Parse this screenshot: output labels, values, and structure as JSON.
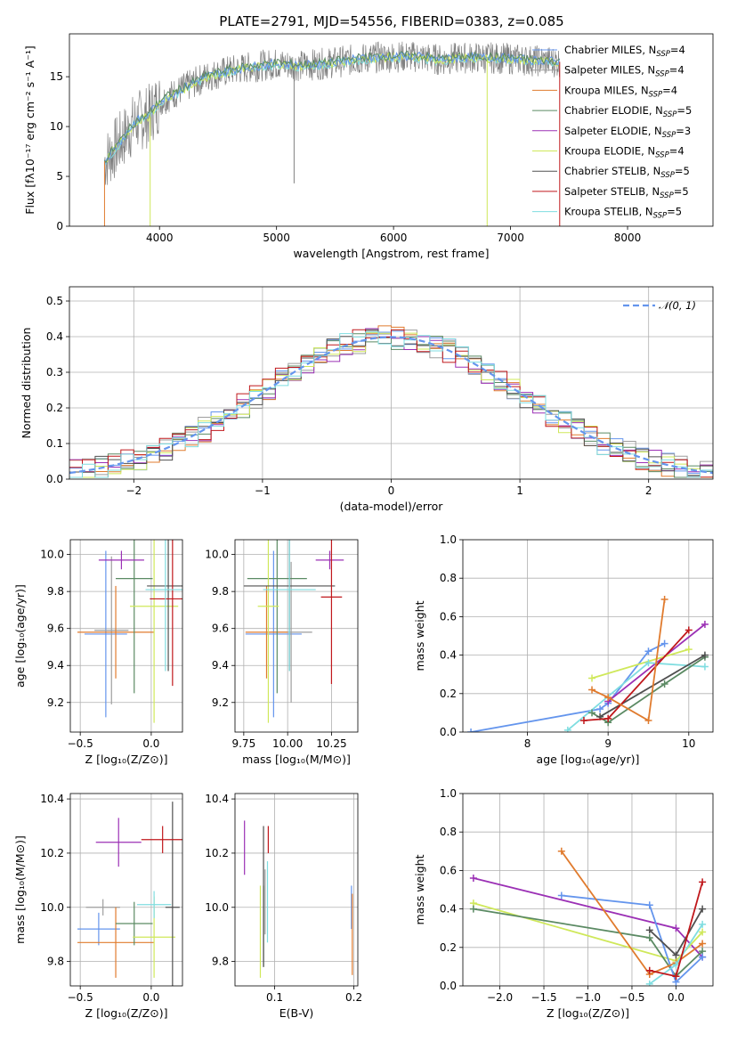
{
  "figure": {
    "title": "PLATE=2791, MJD=54556, FIBERID=0383, z=0.085"
  },
  "series_names": [
    "Chabrier MILES",
    "Salpeter MILES",
    "Kroupa MILES",
    "Chabrier ELODIE",
    "Salpeter ELODIE",
    "Kroupa ELODIE",
    "Chabrier STELIB",
    "Salpeter STELIB",
    "Kroupa STELIB"
  ],
  "series_colors": [
    "#6495ed",
    "#9e9e9e",
    "#e07b2e",
    "#5b8a63",
    "#9b30b5",
    "#cfe85a",
    "#505050",
    "#c0181c",
    "#7fdde0"
  ],
  "chart_data": [
    {
      "type": "line",
      "panel": "spectrum",
      "title": "PLATE=2791, MJD=54556, FIBERID=0383, z=0.085",
      "xlabel": "wavelength [Angstrom, rest frame]",
      "ylabel": "Flux [fλ10⁻¹⁷ erg cm⁻² s⁻¹ A⁻¹]",
      "xlim": [
        3230,
        8730
      ],
      "ylim": [
        0,
        19.3
      ],
      "xticks": [
        "4000",
        "5000",
        "6000",
        "7000",
        "8000"
      ],
      "yticks": [
        "0",
        "5",
        "10",
        "15"
      ],
      "grid": false,
      "legend_position": "right",
      "legend": [
        {
          "name": "Chabrier MILES",
          "n": "4"
        },
        {
          "name": "Salpeter MILES",
          "n": "4"
        },
        {
          "name": "Kroupa MILES",
          "n": "4"
        },
        {
          "name": "Chabrier ELODIE",
          "n": "5"
        },
        {
          "name": "Salpeter ELODIE",
          "n": "3"
        },
        {
          "name": "Kroupa ELODIE",
          "n": "4"
        },
        {
          "name": "Chabrier STELIB",
          "n": "5"
        },
        {
          "name": "Salpeter STELIB",
          "n": "5"
        },
        {
          "name": "Kroupa STELIB",
          "n": "5"
        }
      ],
      "continuum": [
        [
          3530,
          6.5
        ],
        [
          3600,
          7.5
        ],
        [
          3700,
          9.0
        ],
        [
          3800,
          10.5
        ],
        [
          3900,
          11.0
        ],
        [
          4000,
          12.5
        ],
        [
          4200,
          13.8
        ],
        [
          4400,
          15.0
        ],
        [
          4600,
          15.6
        ],
        [
          4800,
          16.0
        ],
        [
          5000,
          16.3
        ],
        [
          5200,
          16.1
        ],
        [
          5400,
          16.3
        ],
        [
          5600,
          16.6
        ],
        [
          5800,
          16.9
        ],
        [
          6000,
          17.0
        ],
        [
          6200,
          17.0
        ],
        [
          6400,
          16.7
        ],
        [
          6600,
          16.9
        ],
        [
          6800,
          16.9
        ],
        [
          7000,
          16.8
        ],
        [
          7200,
          16.6
        ],
        [
          7420,
          16.5
        ]
      ],
      "spikes": [
        {
          "x": 3530,
          "y": 0,
          "color": "#e07b2e"
        },
        {
          "x": 3920,
          "y": 0,
          "color": "#cfe85a"
        },
        {
          "x": 6800,
          "y": 0,
          "color": "#cfe85a"
        },
        {
          "x": 7420,
          "y": 0,
          "color": "#c0181c"
        },
        {
          "x": 5150,
          "y": 4.3,
          "color": "#808080"
        }
      ]
    },
    {
      "type": "line",
      "panel": "residuals",
      "xlabel": "(data-model)/error",
      "ylabel": "Normed distribution",
      "xlim": [
        -2.5,
        2.5
      ],
      "ylim": [
        0,
        0.54
      ],
      "xticks": [
        "−2",
        "−1",
        "0",
        "1",
        "2"
      ],
      "yticks": [
        "0.0",
        "0.1",
        "0.2",
        "0.3",
        "0.4",
        "0.5"
      ],
      "grid": true,
      "legend_position": "top-right",
      "legend": [
        "𝒩(0, 1)"
      ],
      "gaussian": {
        "mean": 0,
        "sigma": 1
      }
    },
    {
      "type": "scatter",
      "panel": "age-vs-Z",
      "xlabel": "Z [log₁₀(Z/Z⊙)]",
      "ylabel": "age  [log₁₀(age/yr)]",
      "xlim": [
        -0.57,
        0.22
      ],
      "ylim": [
        9.04,
        10.08
      ],
      "xticks": [
        "−0.5",
        "0.0"
      ],
      "xtick_values": [
        -0.5,
        0.0
      ],
      "yticks": [
        "9.2",
        "9.4",
        "9.6",
        "9.8",
        "10.0"
      ],
      "ytick_values": [
        9.2,
        9.4,
        9.6,
        9.8,
        10.0
      ],
      "grid": true,
      "points": [
        {
          "s": 0,
          "x": -0.32,
          "xerr": 0.15,
          "y": 9.57,
          "yerr": 0.45
        },
        {
          "s": 1,
          "x": -0.28,
          "xerr": 0.12,
          "y": 9.59,
          "yerr": 0.4
        },
        {
          "s": 2,
          "x": -0.25,
          "xerr": 0.27,
          "y": 9.58,
          "yerr": 0.25
        },
        {
          "s": 3,
          "x": -0.12,
          "xerr": 0.13,
          "y": 9.87,
          "yerr": 0.62
        },
        {
          "s": 4,
          "x": -0.21,
          "xerr": 0.16,
          "y": 9.97,
          "yerr": 0.05
        },
        {
          "s": 5,
          "x": 0.02,
          "xerr": 0.17,
          "y": 9.72,
          "yerr": 0.63
        },
        {
          "s": 6,
          "x": 0.12,
          "xerr": 0.15,
          "y": 9.83,
          "yerr": 0.46
        },
        {
          "s": 7,
          "x": 0.15,
          "xerr": 0.16,
          "y": 9.76,
          "yerr": 0.47
        },
        {
          "s": 8,
          "x": 0.1,
          "xerr": 0.14,
          "y": 9.81,
          "yerr": 0.44
        }
      ]
    },
    {
      "type": "scatter",
      "panel": "age-vs-mass",
      "xlabel": "mass [log₁₀(M/M⊙)]",
      "ylabel": "",
      "xlim": [
        9.7,
        10.4
      ],
      "ylim": [
        9.04,
        10.08
      ],
      "xticks": [
        "9.75",
        "10.00",
        "10.25"
      ],
      "xtick_values": [
        9.75,
        10.0,
        10.25
      ],
      "yticks": [
        "9.2",
        "9.4",
        "9.6",
        "9.8",
        "10.0"
      ],
      "ytick_values": [
        9.2,
        9.4,
        9.6,
        9.8,
        10.0
      ],
      "grid": true,
      "points": [
        {
          "s": 0,
          "x": 9.92,
          "xerr": 0.16,
          "y": 9.57,
          "yerr": 0.45
        },
        {
          "s": 1,
          "x": 10.02,
          "xerr": 0.12,
          "y": 9.58,
          "yerr": 0.38
        },
        {
          "s": 2,
          "x": 9.88,
          "xerr": 0.12,
          "y": 9.58,
          "yerr": 0.25
        },
        {
          "s": 3,
          "x": 9.94,
          "xerr": 0.17,
          "y": 9.87,
          "yerr": 0.62
        },
        {
          "s": 4,
          "x": 10.24,
          "xerr": 0.08,
          "y": 9.97,
          "yerr": 0.05
        },
        {
          "s": 5,
          "x": 9.89,
          "xerr": 0.06,
          "y": 9.72,
          "yerr": 0.63
        },
        {
          "s": 6,
          "x": 10.01,
          "xerr": 0.26,
          "y": 9.83,
          "yerr": 0.46
        },
        {
          "s": 7,
          "x": 10.25,
          "xerr": 0.06,
          "y": 9.77,
          "yerr": 0.47
        },
        {
          "s": 8,
          "x": 10.01,
          "xerr": 0.15,
          "y": 9.81,
          "yerr": 0.44
        }
      ]
    },
    {
      "type": "line",
      "panel": "weight-vs-age",
      "xlabel": "age  [log₁₀(age/yr)]",
      "ylabel": "mass weight",
      "xlim": [
        7.2,
        10.3
      ],
      "ylim": [
        0,
        1.0
      ],
      "xticks": [
        "8",
        "9",
        "10"
      ],
      "xtick_values": [
        8,
        9,
        10
      ],
      "yticks": [
        "0.0",
        "0.2",
        "0.4",
        "0.6",
        "0.8",
        "1.0"
      ],
      "ytick_values": [
        0,
        0.2,
        0.4,
        0.6,
        0.8,
        1.0
      ],
      "grid": true,
      "series": [
        {
          "s": 0,
          "points": [
            [
              7.3,
              0.0
            ],
            [
              8.9,
              0.12
            ],
            [
              9.0,
              0.15
            ],
            [
              9.5,
              0.42
            ],
            [
              9.7,
              0.46
            ]
          ]
        },
        {
          "s": 4,
          "points": [
            [
              9.0,
              0.16
            ],
            [
              10.2,
              0.56
            ]
          ]
        },
        {
          "s": 5,
          "points": [
            [
              8.8,
              0.28
            ],
            [
              10.0,
              0.43
            ]
          ]
        },
        {
          "s": 8,
          "points": [
            [
              8.5,
              0.01
            ],
            [
              9.5,
              0.36
            ],
            [
              10.2,
              0.34
            ]
          ]
        },
        {
          "s": 3,
          "points": [
            [
              8.8,
              0.1
            ],
            [
              9.0,
              0.05
            ],
            [
              9.7,
              0.25
            ],
            [
              10.2,
              0.39
            ]
          ]
        },
        {
          "s": 6,
          "points": [
            [
              8.9,
              0.08
            ],
            [
              10.2,
              0.4
            ]
          ]
        },
        {
          "s": 7,
          "points": [
            [
              8.7,
              0.06
            ],
            [
              9.0,
              0.07
            ],
            [
              10.0,
              0.53
            ]
          ]
        },
        {
          "s": 2,
          "points": [
            [
              8.8,
              0.22
            ],
            [
              9.0,
              0.18
            ],
            [
              9.5,
              0.06
            ],
            [
              9.7,
              0.69
            ]
          ]
        }
      ]
    },
    {
      "type": "scatter",
      "panel": "mass-vs-Z",
      "xlabel": "Z [log₁₀(Z/Z⊙)]",
      "ylabel": "mass [log₁₀(M/M⊙)]",
      "xlim": [
        -0.57,
        0.22
      ],
      "ylim": [
        9.71,
        10.42
      ],
      "xticks": [
        "−0.5",
        "0.0"
      ],
      "xtick_values": [
        -0.5,
        0.0
      ],
      "yticks": [
        "9.8",
        "10.0",
        "10.2",
        "10.4"
      ],
      "ytick_values": [
        9.8,
        10.0,
        10.2,
        10.4
      ],
      "grid": true,
      "points": [
        {
          "s": 0,
          "x": -0.37,
          "xerr": 0.15,
          "y": 9.92,
          "yerr": 0.06
        },
        {
          "s": 1,
          "x": -0.34,
          "xerr": 0.12,
          "y": 10.0,
          "yerr": 0.03
        },
        {
          "s": 2,
          "x": -0.25,
          "xerr": 0.27,
          "y": 9.87,
          "yerr": 0.13
        },
        {
          "s": 3,
          "x": -0.12,
          "xerr": 0.13,
          "y": 9.94,
          "yerr": 0.08
        },
        {
          "s": 4,
          "x": -0.23,
          "xerr": 0.16,
          "y": 10.24,
          "yerr": 0.09
        },
        {
          "s": 5,
          "x": 0.02,
          "xerr": 0.15,
          "y": 9.89,
          "yerr": 0.15
        },
        {
          "s": 6,
          "x": 0.15,
          "xerr": 0.05,
          "y": 10.0,
          "yerr": 0.39
        },
        {
          "s": 7,
          "x": 0.08,
          "xerr": 0.15,
          "y": 10.25,
          "yerr": 0.05
        },
        {
          "s": 8,
          "x": 0.02,
          "xerr": 0.12,
          "y": 10.01,
          "yerr": 0.05
        }
      ]
    },
    {
      "type": "scatter",
      "panel": "mass-vs-ebv",
      "xlabel": "E(B-V)",
      "ylabel": "",
      "xlim": [
        0.05,
        0.205
      ],
      "ylim": [
        9.71,
        10.42
      ],
      "xticks": [
        "0.1",
        "0.2"
      ],
      "xtick_values": [
        0.1,
        0.2
      ],
      "yticks": [
        "9.8",
        "10.0",
        "10.2",
        "10.4"
      ],
      "ytick_values": [
        9.8,
        10.0,
        10.2,
        10.4
      ],
      "grid": true,
      "points": [
        {
          "s": 0,
          "x": 0.197,
          "y": 10.0,
          "yerr": 0.08
        },
        {
          "s": 1,
          "x": 0.088,
          "y": 10.02,
          "yerr": 0.12
        },
        {
          "s": 2,
          "x": 0.198,
          "y": 9.9,
          "yerr": 0.15
        },
        {
          "s": 3,
          "x": 0.086,
          "y": 9.93,
          "yerr": 0.15
        },
        {
          "s": 4,
          "x": 0.062,
          "y": 10.22,
          "yerr": 0.1
        },
        {
          "s": 5,
          "x": 0.082,
          "y": 9.91,
          "yerr": 0.17
        },
        {
          "s": 6,
          "x": 0.086,
          "y": 10.04,
          "yerr": 0.26
        },
        {
          "s": 7,
          "x": 0.092,
          "y": 10.25,
          "yerr": 0.05
        },
        {
          "s": 8,
          "x": 0.091,
          "y": 10.02,
          "yerr": 0.15
        }
      ]
    },
    {
      "type": "line",
      "panel": "weight-vs-Z",
      "xlabel": "Z [log₁₀(Z/Z⊙)]",
      "ylabel": "mass weight",
      "xlim": [
        -2.42,
        0.42
      ],
      "ylim": [
        0,
        1.0
      ],
      "xticks": [
        "−2.0",
        "−1.5",
        "−1.0",
        "−0.5",
        "0.0"
      ],
      "xtick_values": [
        -2.0,
        -1.5,
        -1.0,
        -0.5,
        0.0
      ],
      "yticks": [
        "0.0",
        "0.2",
        "0.4",
        "0.6",
        "0.8",
        "1.0"
      ],
      "ytick_values": [
        0,
        0.2,
        0.4,
        0.6,
        0.8,
        1.0
      ],
      "grid": true,
      "series": [
        {
          "s": 4,
          "points": [
            [
              -2.3,
              0.56
            ],
            [
              0.0,
              0.3
            ],
            [
              0.3,
              0.15
            ]
          ]
        },
        {
          "s": 5,
          "points": [
            [
              -2.3,
              0.43
            ],
            [
              0.0,
              0.13
            ],
            [
              0.3,
              0.28
            ]
          ]
        },
        {
          "s": 3,
          "points": [
            [
              -2.3,
              0.4
            ],
            [
              -0.3,
              0.25
            ],
            [
              0.0,
              0.05
            ],
            [
              0.3,
              0.18
            ]
          ]
        },
        {
          "s": 0,
          "points": [
            [
              -1.3,
              0.47
            ],
            [
              -0.3,
              0.42
            ],
            [
              0.0,
              0.02
            ],
            [
              0.3,
              0.15
            ]
          ]
        },
        {
          "s": 2,
          "points": [
            [
              -1.3,
              0.7
            ],
            [
              -0.3,
              0.06
            ],
            [
              0.0,
              0.12
            ],
            [
              0.3,
              0.22
            ]
          ]
        },
        {
          "s": 8,
          "points": [
            [
              -0.3,
              0.01
            ],
            [
              0.0,
              0.11
            ],
            [
              0.3,
              0.32
            ]
          ]
        },
        {
          "s": 6,
          "points": [
            [
              -0.3,
              0.29
            ],
            [
              0.0,
              0.16
            ],
            [
              0.3,
              0.4
            ]
          ]
        },
        {
          "s": 7,
          "points": [
            [
              -0.3,
              0.08
            ],
            [
              0.0,
              0.05
            ],
            [
              0.3,
              0.54
            ]
          ]
        }
      ]
    }
  ]
}
